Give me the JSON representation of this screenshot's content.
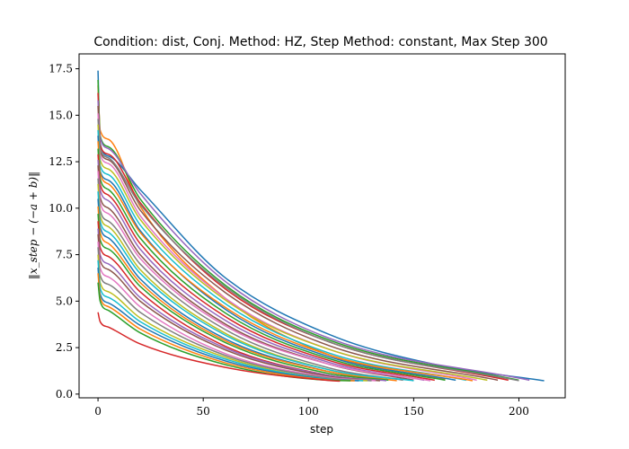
{
  "chart_data": {
    "type": "line",
    "title": "Condition: dist, Conj.  Method: HZ, Step Method: constant, Max Step 300",
    "xlabel": "step",
    "ylabel": "‖x_step − (−a + b)‖",
    "xlim": [
      -9,
      222
    ],
    "ylim": [
      -0.2,
      18.3
    ],
    "xticks": [
      0,
      50,
      100,
      150,
      200
    ],
    "yticks": [
      0.0,
      2.5,
      5.0,
      7.5,
      10.0,
      12.5,
      15.0,
      17.5
    ],
    "ytick_labels": [
      "0.0",
      "2.5",
      "5.0",
      "7.5",
      "10.0",
      "12.5",
      "15.0",
      "17.5"
    ],
    "grid": false,
    "legend": "none",
    "palette": [
      "#1f77b4",
      "#ff7f0e",
      "#2ca02c",
      "#d62728",
      "#9467bd",
      "#8c564b",
      "#e377c2",
      "#7f7f7f",
      "#bcbd22",
      "#17becf"
    ],
    "series": [
      {
        "x": [
          0,
          1,
          5,
          20,
          60,
          110,
          160,
          212
        ],
        "y": [
          17.4,
          13.5,
          12.8,
          11.0,
          6.3,
          3.2,
          1.6,
          0.72
        ]
      },
      {
        "x": [
          0,
          1,
          5,
          20,
          60,
          110,
          165
        ],
        "y": [
          16.6,
          14.2,
          13.7,
          10.1,
          5.2,
          2.1,
          0.8
        ]
      },
      {
        "x": [
          0,
          1,
          5,
          20,
          60,
          110,
          200
        ],
        "y": [
          16.9,
          13.9,
          13.3,
          10.5,
          5.9,
          2.9,
          0.75
        ]
      },
      {
        "x": [
          0,
          1,
          5,
          20,
          60,
          110,
          195
        ],
        "y": [
          16.2,
          13.4,
          12.9,
          10.3,
          5.7,
          2.8,
          0.75
        ]
      },
      {
        "x": [
          0,
          1,
          5,
          20,
          60,
          110,
          205
        ],
        "y": [
          15.8,
          13.8,
          13.2,
          10.8,
          6.1,
          3.0,
          0.75
        ]
      },
      {
        "x": [
          0,
          1,
          5,
          20,
          60,
          110,
          190
        ],
        "y": [
          15.5,
          13.1,
          12.6,
          9.9,
          5.5,
          2.6,
          0.75
        ]
      },
      {
        "x": [
          0,
          1,
          5,
          20,
          60,
          110,
          180
        ],
        "y": [
          15.1,
          12.9,
          12.4,
          9.6,
          5.2,
          2.4,
          0.75
        ]
      },
      {
        "x": [
          0,
          1,
          5,
          20,
          60,
          110,
          200
        ],
        "y": [
          14.8,
          13.2,
          12.7,
          10.2,
          5.8,
          2.8,
          0.72
        ]
      },
      {
        "x": [
          0,
          1,
          5,
          20,
          60,
          110,
          185
        ],
        "y": [
          14.5,
          12.6,
          12.1,
          9.4,
          5.1,
          2.4,
          0.75
        ]
      },
      {
        "x": [
          0,
          1,
          5,
          20,
          60,
          110,
          175
        ],
        "y": [
          14.2,
          12.3,
          11.8,
          9.1,
          4.9,
          2.2,
          0.75
        ]
      },
      {
        "x": [
          0,
          1,
          5,
          20,
          60,
          110,
          170
        ],
        "y": [
          13.9,
          12.0,
          11.5,
          8.8,
          4.6,
          2.0,
          0.75
        ]
      },
      {
        "x": [
          0,
          1,
          5,
          20,
          60,
          110,
          178
        ],
        "y": [
          13.6,
          11.9,
          11.3,
          8.7,
          4.7,
          2.1,
          0.72
        ]
      },
      {
        "x": [
          0,
          1,
          5,
          20,
          60,
          110,
          165
        ],
        "y": [
          13.2,
          11.6,
          11.0,
          8.4,
          4.4,
          1.9,
          0.75
        ]
      },
      {
        "x": [
          0,
          1,
          5,
          20,
          60,
          110,
          160
        ],
        "y": [
          12.9,
          11.3,
          10.7,
          8.1,
          4.2,
          1.8,
          0.75
        ]
      },
      {
        "x": [
          0,
          1,
          5,
          20,
          60,
          110,
          155
        ],
        "y": [
          12.6,
          11.0,
          10.4,
          7.8,
          4.0,
          1.7,
          0.75
        ]
      },
      {
        "x": [
          0,
          1,
          5,
          20,
          60,
          110,
          150
        ],
        "y": [
          12.3,
          10.6,
          10.0,
          7.5,
          3.8,
          1.6,
          0.75
        ]
      },
      {
        "x": [
          0,
          1,
          5,
          20,
          60,
          110,
          158
        ],
        "y": [
          12.0,
          10.3,
          9.7,
          7.3,
          3.7,
          1.6,
          0.72
        ]
      },
      {
        "x": [
          0,
          1,
          5,
          20,
          60,
          110,
          145
        ],
        "y": [
          11.6,
          9.9,
          9.3,
          7.0,
          3.5,
          1.4,
          0.75
        ]
      },
      {
        "x": [
          0,
          1,
          5,
          20,
          60,
          110,
          140
        ],
        "y": [
          11.3,
          9.6,
          9.0,
          6.7,
          3.3,
          1.3,
          0.75
        ]
      },
      {
        "x": [
          0,
          1,
          5,
          20,
          60,
          110,
          150
        ],
        "y": [
          10.9,
          9.3,
          8.7,
          6.5,
          3.2,
          1.3,
          0.72
        ]
      },
      {
        "x": [
          0,
          1,
          5,
          20,
          60,
          110,
          135
        ],
        "y": [
          10.5,
          9.0,
          8.4,
          6.2,
          3.0,
          1.2,
          0.75
        ]
      },
      {
        "x": [
          0,
          1,
          5,
          20,
          60,
          110,
          142
        ],
        "y": [
          10.1,
          8.7,
          8.1,
          6.0,
          2.9,
          1.2,
          0.72
        ]
      },
      {
        "x": [
          0,
          1,
          5,
          20,
          60,
          110,
          138
        ],
        "y": [
          9.7,
          8.3,
          7.8,
          5.8,
          2.8,
          1.1,
          0.75
        ]
      },
      {
        "x": [
          0,
          1,
          5,
          20,
          60,
          110,
          130
        ],
        "y": [
          9.3,
          7.9,
          7.4,
          5.5,
          2.6,
          1.0,
          0.75
        ]
      },
      {
        "x": [
          0,
          1,
          5,
          20,
          60,
          110,
          137
        ],
        "y": [
          8.9,
          7.5,
          7.0,
          5.2,
          2.5,
          1.0,
          0.72
        ]
      },
      {
        "x": [
          0,
          1,
          5,
          20,
          60,
          110,
          134
        ],
        "y": [
          8.6,
          7.2,
          6.7,
          5.0,
          2.4,
          0.95,
          0.72
        ]
      },
      {
        "x": [
          0,
          1,
          5,
          20,
          60,
          110,
          132
        ],
        "y": [
          8.2,
          6.8,
          6.3,
          4.7,
          2.2,
          0.9,
          0.72
        ]
      },
      {
        "x": [
          0,
          1,
          5,
          20,
          60,
          110,
          130
        ],
        "y": [
          7.9,
          6.4,
          5.9,
          4.4,
          2.1,
          0.85,
          0.72
        ]
      },
      {
        "x": [
          0,
          1,
          5,
          20,
          60,
          110,
          128
        ],
        "y": [
          7.5,
          6.0,
          5.5,
          4.1,
          2.0,
          0.8,
          0.72
        ]
      },
      {
        "x": [
          0,
          1,
          5,
          20,
          60,
          110,
          126
        ],
        "y": [
          7.2,
          5.7,
          5.2,
          3.9,
          1.9,
          0.8,
          0.72
        ]
      },
      {
        "x": [
          0,
          1,
          5,
          20,
          60,
          110,
          124
        ],
        "y": [
          6.8,
          5.4,
          4.9,
          3.7,
          1.8,
          0.78,
          0.72
        ]
      },
      {
        "x": [
          0,
          1,
          5,
          20,
          60,
          110,
          122
        ],
        "y": [
          6.5,
          5.2,
          4.7,
          3.5,
          1.7,
          0.76,
          0.72
        ]
      },
      {
        "x": [
          0,
          1,
          5,
          20,
          60,
          110,
          120
        ],
        "y": [
          6.0,
          5.0,
          4.5,
          3.3,
          1.6,
          0.74,
          0.72
        ]
      },
      {
        "x": [
          0,
          1,
          5,
          20,
          60,
          110,
          115
        ],
        "y": [
          4.4,
          3.9,
          3.6,
          2.7,
          1.45,
          0.73,
          0.7
        ]
      }
    ]
  }
}
